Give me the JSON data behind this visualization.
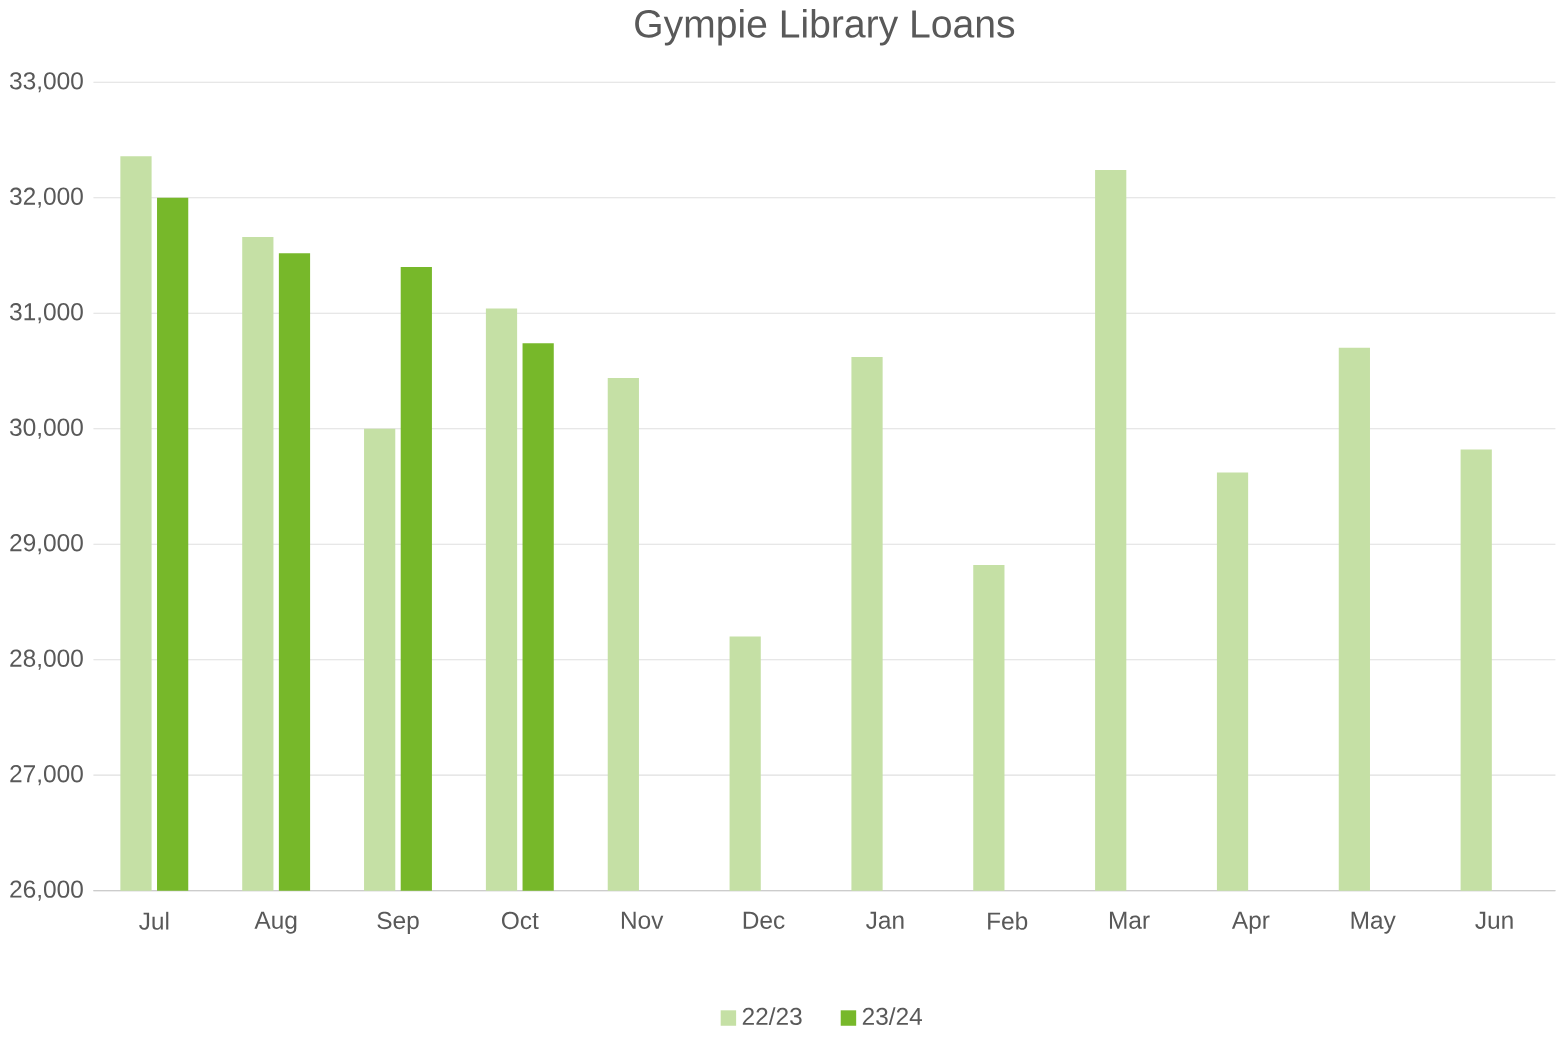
{
  "chart_data": {
    "type": "bar",
    "title": "Gympie Library Loans",
    "categories": [
      "Jul",
      "Aug",
      "Sep",
      "Oct",
      "Nov",
      "Dec",
      "Jan",
      "Feb",
      "Mar",
      "Apr",
      "May",
      "Jun"
    ],
    "series": [
      {
        "name": "22/23",
        "color": "#c5e0a5",
        "values": [
          32360,
          31660,
          30000,
          31040,
          30440,
          28200,
          30620,
          28820,
          32240,
          29620,
          30700,
          29820
        ]
      },
      {
        "name": "23/24",
        "color": "#77b82a",
        "values": [
          32000,
          31520,
          31400,
          30740,
          null,
          null,
          null,
          null,
          null,
          null,
          null,
          null
        ]
      }
    ],
    "ylim": [
      26000,
      33000
    ],
    "yticks": [
      {
        "value": 26000,
        "label": "26,000"
      },
      {
        "value": 27000,
        "label": "27,000"
      },
      {
        "value": 28000,
        "label": "28,000"
      },
      {
        "value": 29000,
        "label": "29,000"
      },
      {
        "value": 30000,
        "label": "30,000"
      },
      {
        "value": 31000,
        "label": "31,000"
      },
      {
        "value": 32000,
        "label": "32,000"
      },
      {
        "value": 33000,
        "label": "33,000"
      }
    ],
    "grid": "y",
    "legend": "bottom"
  }
}
